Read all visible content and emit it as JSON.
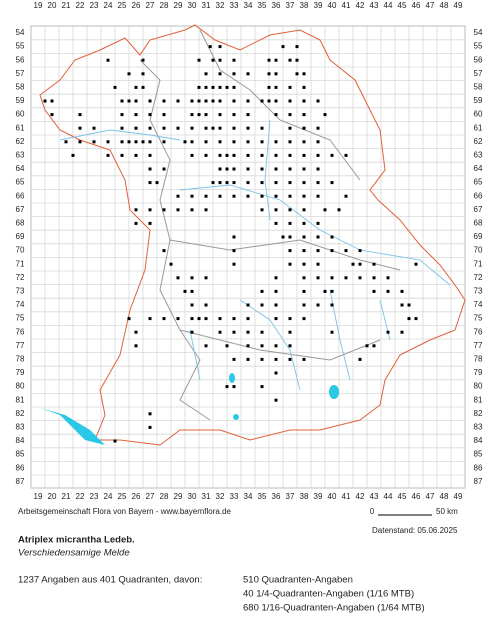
{
  "map": {
    "columns": [
      19,
      20,
      21,
      22,
      23,
      24,
      25,
      26,
      27,
      28,
      29,
      30,
      31,
      32,
      33,
      34,
      35,
      36,
      37,
      38,
      39,
      40,
      41,
      42,
      43,
      44,
      45,
      46,
      47,
      48,
      49
    ],
    "rows": [
      54,
      55,
      56,
      57,
      58,
      59,
      60,
      61,
      62,
      63,
      64,
      65,
      66,
      67,
      68,
      69,
      70,
      71,
      72,
      73,
      74,
      75,
      76,
      77,
      78,
      79,
      80,
      81,
      82,
      83,
      84,
      85,
      86,
      87
    ],
    "dots": [
      [
        31.3,
        55
      ],
      [
        32,
        55
      ],
      [
        36.5,
        55
      ],
      [
        37.5,
        55
      ],
      [
        24,
        56
      ],
      [
        26.5,
        56
      ],
      [
        30.5,
        56
      ],
      [
        31.5,
        56
      ],
      [
        32,
        56
      ],
      [
        33,
        56
      ],
      [
        35.5,
        56
      ],
      [
        36,
        56
      ],
      [
        37,
        56
      ],
      [
        37.5,
        56
      ],
      [
        25.5,
        57
      ],
      [
        26.5,
        57
      ],
      [
        31,
        57
      ],
      [
        32,
        57
      ],
      [
        33,
        57
      ],
      [
        34,
        57
      ],
      [
        35.5,
        57
      ],
      [
        36,
        57
      ],
      [
        37.5,
        57
      ],
      [
        38,
        57
      ],
      [
        24.5,
        58
      ],
      [
        26,
        58
      ],
      [
        26.5,
        58
      ],
      [
        30.5,
        58
      ],
      [
        31,
        58
      ],
      [
        31.5,
        58
      ],
      [
        32,
        58
      ],
      [
        32.5,
        58
      ],
      [
        33,
        58
      ],
      [
        35.5,
        58
      ],
      [
        36,
        58
      ],
      [
        37,
        58
      ],
      [
        38,
        58
      ],
      [
        19.5,
        59
      ],
      [
        20,
        59
      ],
      [
        25,
        59
      ],
      [
        25.5,
        59
      ],
      [
        26,
        59
      ],
      [
        27,
        59
      ],
      [
        28,
        59
      ],
      [
        29,
        59
      ],
      [
        30,
        59
      ],
      [
        30.5,
        59
      ],
      [
        31,
        59
      ],
      [
        31.5,
        59
      ],
      [
        32,
        59
      ],
      [
        33,
        59
      ],
      [
        34,
        59
      ],
      [
        35,
        59
      ],
      [
        35.5,
        59
      ],
      [
        36,
        59
      ],
      [
        37,
        59
      ],
      [
        38,
        59
      ],
      [
        39,
        59
      ],
      [
        20,
        60
      ],
      [
        22,
        60
      ],
      [
        25,
        60
      ],
      [
        26,
        60
      ],
      [
        27,
        60
      ],
      [
        28,
        60
      ],
      [
        30,
        60
      ],
      [
        30.5,
        60
      ],
      [
        31,
        60
      ],
      [
        32,
        60
      ],
      [
        33,
        60
      ],
      [
        34,
        60
      ],
      [
        36,
        60
      ],
      [
        37,
        60
      ],
      [
        38,
        60
      ],
      [
        39.5,
        60
      ],
      [
        22,
        61
      ],
      [
        23,
        61
      ],
      [
        25,
        61
      ],
      [
        26,
        61
      ],
      [
        27,
        61
      ],
      [
        28,
        61
      ],
      [
        29,
        61
      ],
      [
        30,
        61
      ],
      [
        31,
        61
      ],
      [
        31.5,
        61
      ],
      [
        32,
        61
      ],
      [
        33,
        61
      ],
      [
        34,
        61
      ],
      [
        35,
        61
      ],
      [
        37,
        61
      ],
      [
        38,
        61
      ],
      [
        39,
        61
      ],
      [
        21,
        62
      ],
      [
        22,
        62
      ],
      [
        23,
        62
      ],
      [
        24,
        62
      ],
      [
        25,
        62
      ],
      [
        25.5,
        62
      ],
      [
        26,
        62
      ],
      [
        26.5,
        62
      ],
      [
        27,
        62
      ],
      [
        28,
        62
      ],
      [
        29.5,
        62
      ],
      [
        30,
        62
      ],
      [
        31,
        62
      ],
      [
        32,
        62
      ],
      [
        33,
        62
      ],
      [
        34,
        62
      ],
      [
        35,
        62
      ],
      [
        36,
        62
      ],
      [
        37,
        62
      ],
      [
        38,
        62
      ],
      [
        39,
        62
      ],
      [
        21.5,
        63
      ],
      [
        24,
        63
      ],
      [
        25,
        63
      ],
      [
        26,
        63
      ],
      [
        27,
        63
      ],
      [
        30,
        63
      ],
      [
        31,
        63
      ],
      [
        32,
        63
      ],
      [
        32.5,
        63
      ],
      [
        33,
        63
      ],
      [
        34,
        63
      ],
      [
        35,
        63
      ],
      [
        36,
        63
      ],
      [
        37,
        63
      ],
      [
        38,
        63
      ],
      [
        39,
        63
      ],
      [
        40,
        63
      ],
      [
        41,
        63
      ],
      [
        27,
        64
      ],
      [
        28,
        64
      ],
      [
        32,
        64
      ],
      [
        32.5,
        64
      ],
      [
        33,
        64
      ],
      [
        34,
        64
      ],
      [
        35,
        64
      ],
      [
        36,
        64
      ],
      [
        37,
        64
      ],
      [
        38,
        64
      ],
      [
        39,
        64
      ],
      [
        27,
        65
      ],
      [
        27.5,
        65
      ],
      [
        31.5,
        65
      ],
      [
        32,
        65
      ],
      [
        32.5,
        65
      ],
      [
        33,
        65
      ],
      [
        34,
        65
      ],
      [
        35,
        65
      ],
      [
        36,
        65
      ],
      [
        37,
        65
      ],
      [
        38,
        65
      ],
      [
        39,
        65
      ],
      [
        40,
        65
      ],
      [
        29,
        66
      ],
      [
        30,
        66
      ],
      [
        31,
        66
      ],
      [
        32,
        66
      ],
      [
        33,
        66
      ],
      [
        34,
        66
      ],
      [
        35,
        66
      ],
      [
        36,
        66
      ],
      [
        37,
        66
      ],
      [
        38,
        66
      ],
      [
        39,
        66
      ],
      [
        41,
        66
      ],
      [
        26,
        67
      ],
      [
        27,
        67
      ],
      [
        28,
        67
      ],
      [
        29,
        67
      ],
      [
        30,
        67
      ],
      [
        31,
        67
      ],
      [
        35,
        67
      ],
      [
        36,
        67
      ],
      [
        37,
        67
      ],
      [
        38,
        67
      ],
      [
        39.5,
        67
      ],
      [
        40.5,
        67
      ],
      [
        26,
        68
      ],
      [
        27,
        68
      ],
      [
        36,
        68
      ],
      [
        37,
        68
      ],
      [
        38,
        68
      ],
      [
        39,
        68
      ],
      [
        33,
        69
      ],
      [
        36.5,
        69
      ],
      [
        37,
        69
      ],
      [
        38,
        69
      ],
      [
        39,
        69
      ],
      [
        40,
        69
      ],
      [
        28,
        70
      ],
      [
        33,
        70
      ],
      [
        37,
        70
      ],
      [
        38,
        70
      ],
      [
        39,
        70
      ],
      [
        40,
        70
      ],
      [
        41,
        70
      ],
      [
        42,
        70
      ],
      [
        28.5,
        71
      ],
      [
        33,
        71
      ],
      [
        37,
        71
      ],
      [
        38,
        71
      ],
      [
        39,
        71
      ],
      [
        41.5,
        71
      ],
      [
        42,
        71
      ],
      [
        43,
        71
      ],
      [
        46,
        71
      ],
      [
        29,
        72
      ],
      [
        30,
        72
      ],
      [
        31,
        72
      ],
      [
        36,
        72
      ],
      [
        38,
        72
      ],
      [
        39,
        72
      ],
      [
        40,
        72
      ],
      [
        41,
        72
      ],
      [
        42,
        72
      ],
      [
        43,
        72
      ],
      [
        44,
        72
      ],
      [
        29.5,
        73
      ],
      [
        30,
        73
      ],
      [
        35,
        73
      ],
      [
        36,
        73
      ],
      [
        38,
        73
      ],
      [
        39.5,
        73
      ],
      [
        40,
        73
      ],
      [
        43,
        73
      ],
      [
        44,
        73
      ],
      [
        45,
        73
      ],
      [
        30,
        74
      ],
      [
        31,
        74
      ],
      [
        34,
        74
      ],
      [
        35,
        74
      ],
      [
        36,
        74
      ],
      [
        38,
        74
      ],
      [
        39,
        74
      ],
      [
        40,
        74
      ],
      [
        45,
        74
      ],
      [
        45.5,
        74
      ],
      [
        25.5,
        75
      ],
      [
        27,
        75
      ],
      [
        28,
        75
      ],
      [
        29,
        75
      ],
      [
        30,
        75
      ],
      [
        30.5,
        75
      ],
      [
        31,
        75
      ],
      [
        32,
        75
      ],
      [
        33,
        75
      ],
      [
        34,
        75
      ],
      [
        36,
        75
      ],
      [
        37,
        75
      ],
      [
        38,
        75
      ],
      [
        45.5,
        75
      ],
      [
        46,
        75
      ],
      [
        26,
        76
      ],
      [
        30,
        76
      ],
      [
        32,
        76
      ],
      [
        33,
        76
      ],
      [
        34,
        76
      ],
      [
        35,
        76
      ],
      [
        37,
        76
      ],
      [
        40,
        76
      ],
      [
        44,
        76
      ],
      [
        45,
        76
      ],
      [
        26,
        77
      ],
      [
        31,
        77
      ],
      [
        32.5,
        77
      ],
      [
        34,
        77
      ],
      [
        35,
        77
      ],
      [
        36,
        77
      ],
      [
        37,
        77
      ],
      [
        42.5,
        77
      ],
      [
        43,
        77
      ],
      [
        33,
        78
      ],
      [
        34,
        78
      ],
      [
        35,
        78
      ],
      [
        36,
        78
      ],
      [
        37,
        78
      ],
      [
        38,
        78
      ],
      [
        42,
        78
      ],
      [
        36,
        79
      ],
      [
        32.5,
        80
      ],
      [
        33,
        80
      ],
      [
        35,
        80
      ],
      [
        36,
        81
      ],
      [
        27,
        82
      ],
      [
        27,
        83
      ],
      [
        24.5,
        84
      ]
    ]
  },
  "footer": {
    "credit": "Arbeitsgemeinschaft Flora von Bayern - www.bayernflora.de",
    "scale_start": 0,
    "scale_end": "50 km",
    "date": "Datenstand: 05.06.2025"
  },
  "species": {
    "name": "Atriplex micrantha Ledeb.",
    "common_name": "Verschiedensamige Melde"
  },
  "summary": {
    "total": "1237 Angaben aus 401 Quadranten, davon:",
    "lines": [
      "510 Quadranten-Angaben",
      "40 1/4-Quadranten-Angaben (1/16 MTB)",
      "680 1/16-Quadranten-Angaben (1/64 MTB)"
    ]
  }
}
